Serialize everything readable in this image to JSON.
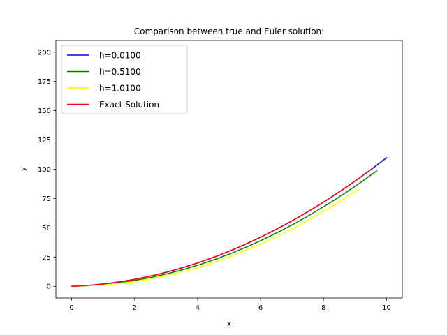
{
  "chart_data": {
    "type": "line",
    "title": "Comparison between true and Euler solution:",
    "xlabel": "x",
    "ylabel": "y",
    "xlim": [
      -0.5,
      10.5
    ],
    "ylim": [
      -10,
      210
    ],
    "xticks": [
      0,
      2,
      4,
      6,
      8,
      10
    ],
    "yticks": [
      0,
      25,
      50,
      75,
      100,
      125,
      150,
      175,
      200
    ],
    "grid": false,
    "legend_position": "top-left",
    "series": [
      {
        "name": "h=0.0100",
        "color": "#0000ff",
        "x_end": 10.0,
        "h": 0.01
      },
      {
        "name": "h=0.5100",
        "color": "#008000",
        "x_end": 9.69,
        "h": 0.51
      },
      {
        "name": "h=1.0100",
        "color": "#ffff00",
        "x_end": 9.09,
        "h": 1.01
      },
      {
        "name": "Exact Solution",
        "color": "#ff0000",
        "x_end": 9.5,
        "h": 0
      }
    ]
  }
}
